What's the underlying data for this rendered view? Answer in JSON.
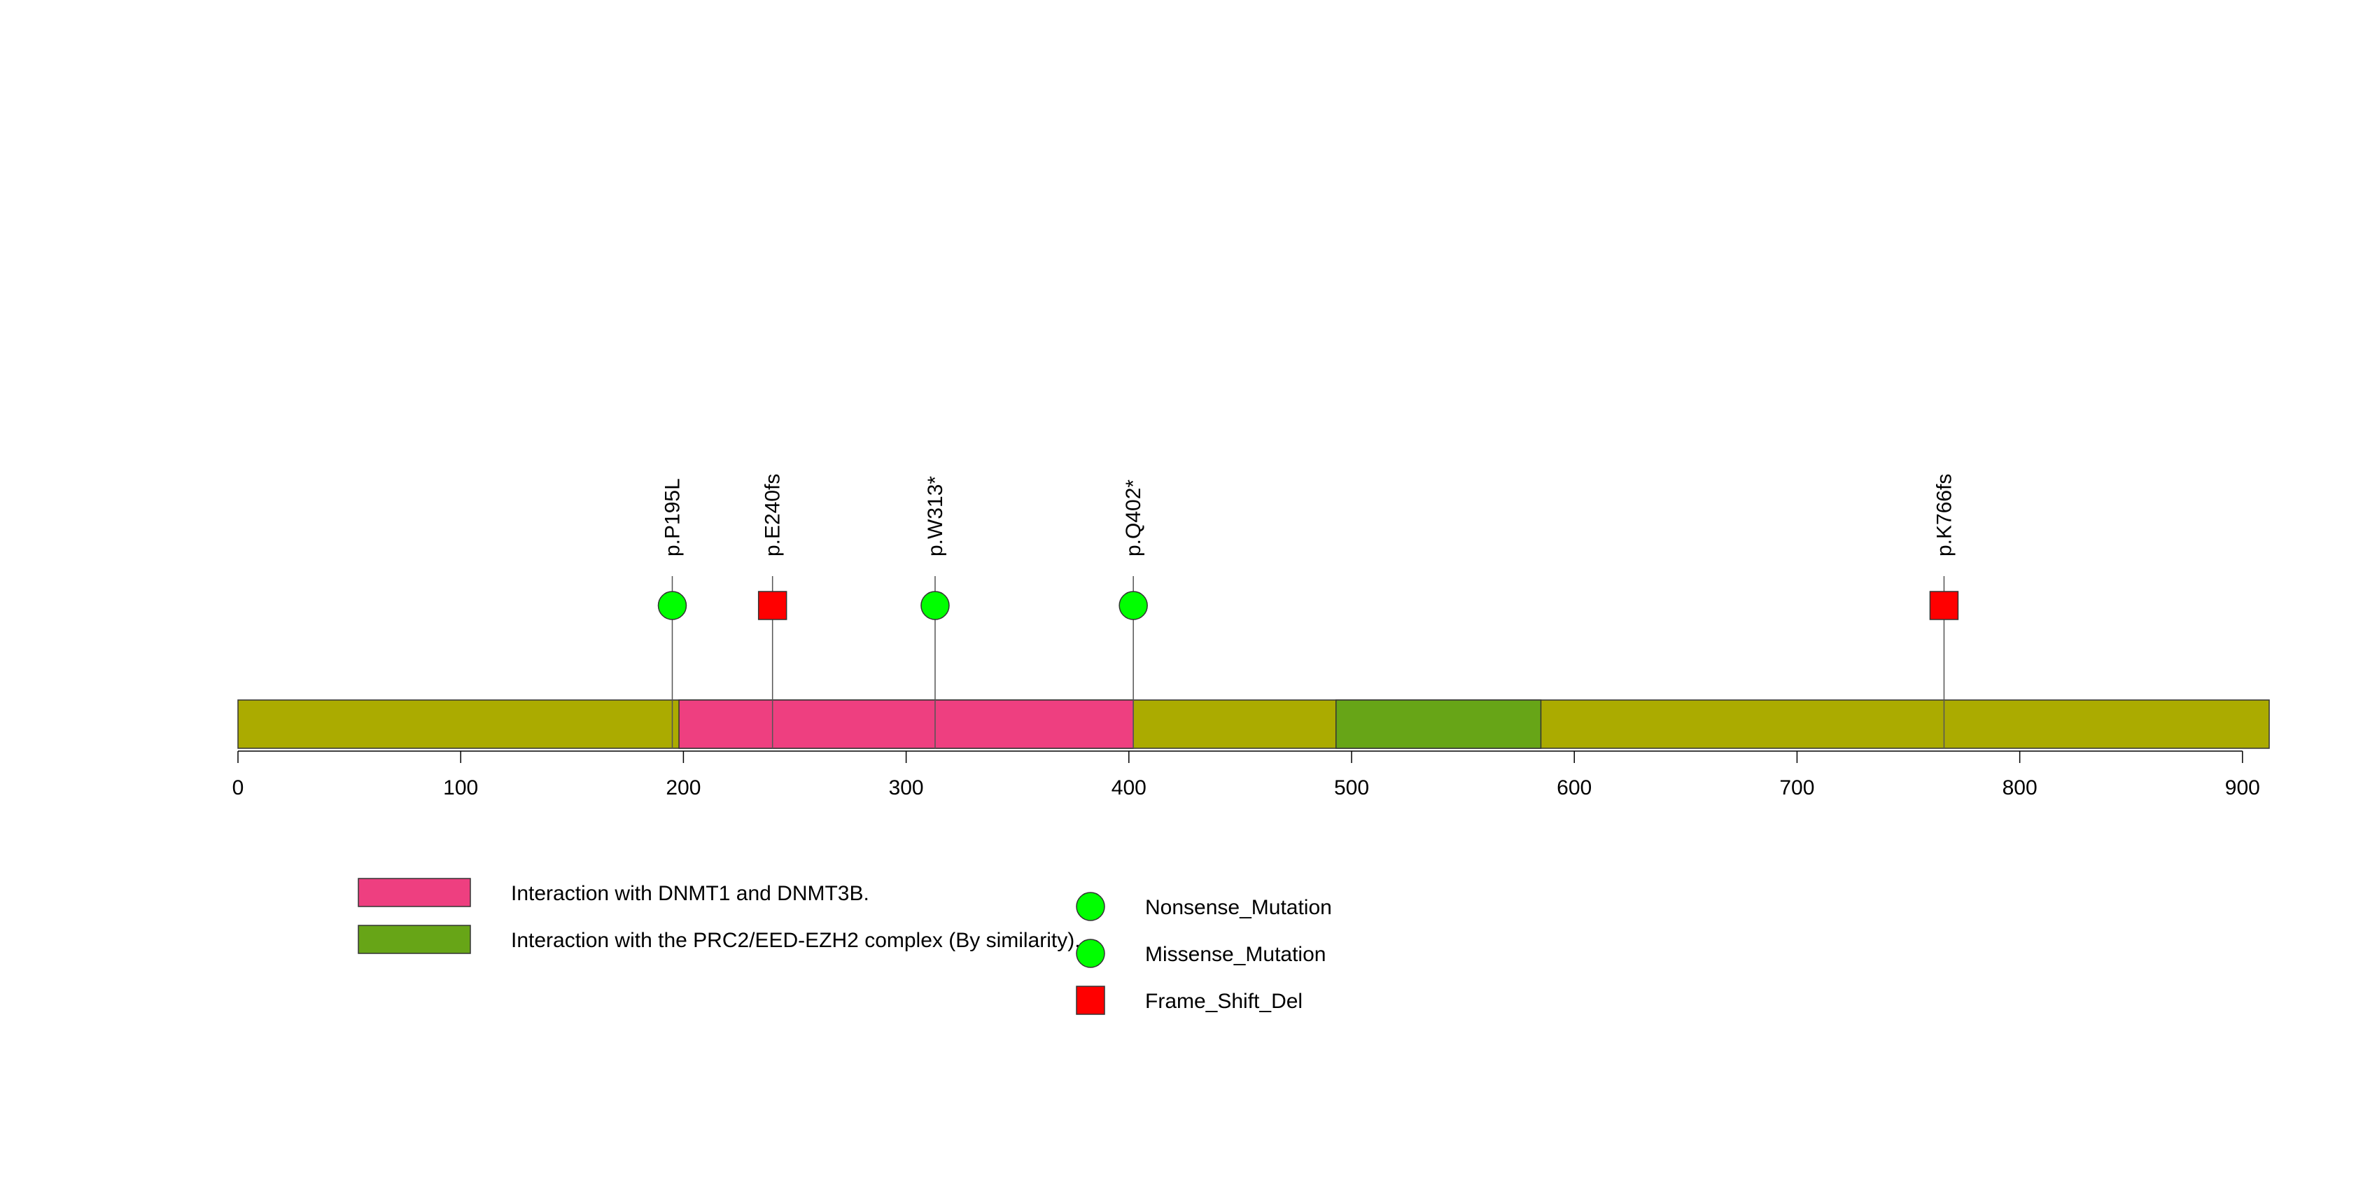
{
  "chart_data": {
    "type": "lollipop",
    "title": "",
    "xlabel": "",
    "ylabel": "",
    "xlim": [
      0,
      912
    ],
    "x_ticks": [
      0,
      100,
      200,
      300,
      400,
      500,
      600,
      700,
      800,
      900
    ],
    "protein_length": 912,
    "domains": [
      {
        "name": "Interaction with DNMT1 and DNMT3B.",
        "start": 198,
        "end": 402,
        "color": "#EE3F80"
      },
      {
        "name": "Interaction with the PRC2/EED-EZH2 complex (By similarity).",
        "start": 493,
        "end": 585,
        "color": "#67A517"
      }
    ],
    "backbone_color": "#ABAB00",
    "mutations": [
      {
        "label": "p.P195L",
        "position": 195,
        "type": "Missense_Mutation",
        "shape": "circle",
        "color": "#00FF00"
      },
      {
        "label": "p.E240fs",
        "position": 240,
        "type": "Frame_Shift_Del",
        "shape": "square",
        "color": "#FF0000"
      },
      {
        "label": "p.W313*",
        "position": 313,
        "type": "Nonsense_Mutation",
        "shape": "circle",
        "color": "#00FF00"
      },
      {
        "label": "p.Q402*",
        "position": 402,
        "type": "Nonsense_Mutation",
        "shape": "circle",
        "color": "#00FF00"
      },
      {
        "label": "p.K766fs",
        "position": 766,
        "type": "Frame_Shift_Del",
        "shape": "square",
        "color": "#FF0000"
      }
    ],
    "legend": {
      "domains": [
        {
          "label": "Interaction with DNMT1 and DNMT3B.",
          "color": "#EE3F80"
        },
        {
          "label": "Interaction with the PRC2/EED-EZH2 complex (By similarity).",
          "color": "#67A517"
        }
      ],
      "mutation_types": [
        {
          "label": "Nonsense_Mutation",
          "shape": "circle",
          "color": "#00FF00"
        },
        {
          "label": "Missense_Mutation",
          "shape": "circle",
          "color": "#00FF00"
        },
        {
          "label": "Frame_Shift_Del",
          "shape": "square",
          "color": "#FF0000"
        }
      ]
    }
  }
}
